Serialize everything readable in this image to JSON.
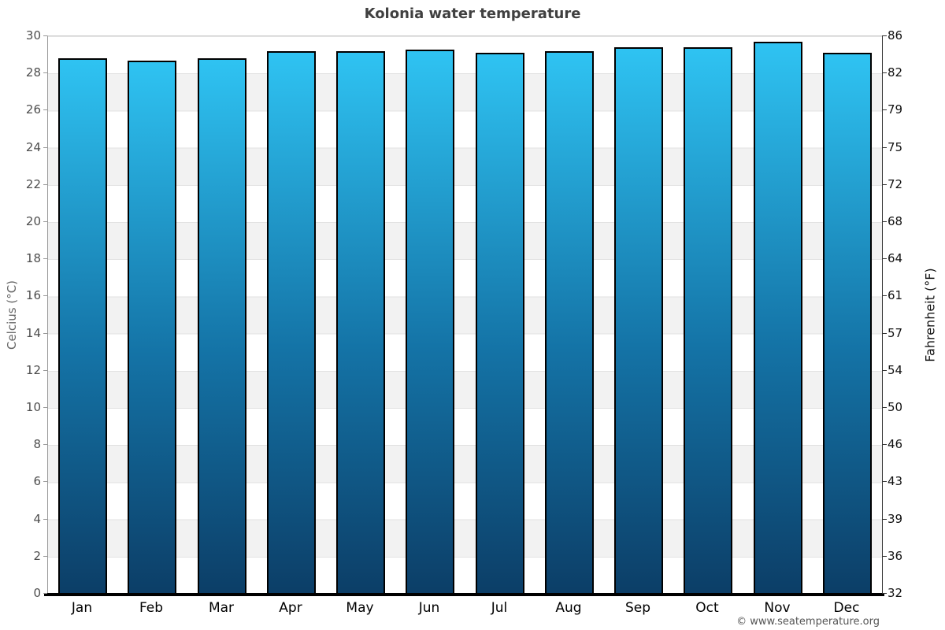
{
  "title": "Kolonia water temperature",
  "watermark": "© www.seatemperature.org",
  "y_axis_left": {
    "label": "Celcius (°C)",
    "ticks": [
      30,
      28,
      26,
      24,
      22,
      20,
      18,
      16,
      14,
      12,
      10,
      8,
      6,
      4,
      2,
      0
    ]
  },
  "y_axis_right": {
    "label": "Fahrenheit (°F)",
    "ticks": [
      86,
      82,
      79,
      75,
      72,
      68,
      64,
      61,
      57,
      54,
      50,
      46,
      43,
      39,
      36,
      32
    ]
  },
  "chart_data": {
    "type": "bar",
    "title": "Kolonia water temperature",
    "categories": [
      "Jan",
      "Feb",
      "Mar",
      "Apr",
      "May",
      "Jun",
      "Jul",
      "Aug",
      "Sep",
      "Oct",
      "Nov",
      "Dec"
    ],
    "values": [
      28.8,
      28.7,
      28.8,
      29.2,
      29.2,
      29.3,
      29.1,
      29.2,
      29.4,
      29.4,
      29.7,
      29.1
    ],
    "unit": "°C",
    "xlabel": "",
    "ylabel": "Celcius (°C)",
    "ylabel_right": "Fahrenheit (°F)",
    "ylim": [
      0,
      30
    ],
    "ylim_right_f": [
      32,
      86
    ],
    "grid": "alternating horizontal bands every 2°C, gray #f2f2f2 on white",
    "legend": "none",
    "bar_gradient_top": "#2fc3f2",
    "bar_gradient_bottom": "#0c3e67",
    "bar_border_color": "#000000"
  },
  "colors": {
    "title_text": "#404040",
    "left_tick_text": "#4d4d4d",
    "right_tick_text": "#111111",
    "band_gray": "#f2f2f2",
    "x_axis_line": "#000000"
  }
}
